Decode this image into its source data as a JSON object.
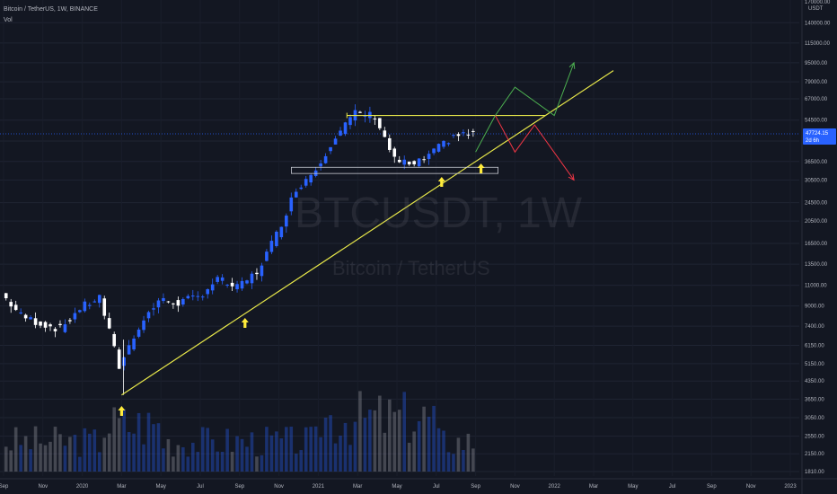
{
  "header": {
    "symbol_line": "Bitcoin / TetherUS, 1W, BINANCE",
    "indicator": "Vol"
  },
  "watermark": {
    "ticker": "BTCUSDT, 1W",
    "name": "Bitcoin / TetherUS"
  },
  "price_axis": {
    "currency": "USDT",
    "top_value": "170000.00",
    "labels": [
      "140000.00",
      "115000.00",
      "95000.00",
      "79000.00",
      "67000.00",
      "54500.00",
      "44500.00",
      "36500.00",
      "30500.00",
      "24500.00",
      "20500.00",
      "16500.00",
      "13500.00",
      "11000.00",
      "9000.00",
      "7400.00",
      "6150.00",
      "5150.00",
      "4350.00",
      "3650.00",
      "3050.00",
      "2550.00",
      "2150.00",
      "1810.00"
    ],
    "current_price": "47724.15",
    "countdown": "2d 6h"
  },
  "time_axis": [
    "Sep",
    "Nov",
    "2020",
    "Mar",
    "May",
    "Jul",
    "Sep",
    "Nov",
    "2021",
    "Mar",
    "May",
    "Jul",
    "Sep",
    "Nov",
    "2022",
    "Mar",
    "May",
    "Jul",
    "Sep",
    "Nov",
    "2023"
  ],
  "colors": {
    "background": "#131722",
    "up_candle": "#2962ff",
    "down_candle": "#ffffff",
    "trendline": "#e8e84a",
    "arrow_marker": "#ffeb3b",
    "bull_path": "#4caf50",
    "bear_path": "#f23645",
    "price_tag": "#2962ff"
  },
  "chart_data": {
    "type": "candlestick",
    "title": "Bitcoin / TetherUS, 1W, BINANCE",
    "y_scale": "log",
    "ylim": [
      1810,
      170000
    ],
    "xlim": [
      "2019-09",
      "2023-01"
    ],
    "current_price": 47724.15,
    "series": [
      {
        "name": "close_path",
        "points": [
          {
            "x": "2019-09",
            "y": 10200
          },
          {
            "x": "2019-10",
            "y": 8200
          },
          {
            "x": "2019-11",
            "y": 7600
          },
          {
            "x": "2019-12",
            "y": 7200
          },
          {
            "x": "2020-01",
            "y": 8800
          },
          {
            "x": "2020-02",
            "y": 9800
          },
          {
            "x": "2020-03",
            "y": 5000
          },
          {
            "x": "2020-04",
            "y": 7400
          },
          {
            "x": "2020-05",
            "y": 9500
          },
          {
            "x": "2020-06",
            "y": 9300
          },
          {
            "x": "2020-07",
            "y": 9800
          },
          {
            "x": "2020-08",
            "y": 11700
          },
          {
            "x": "2020-09",
            "y": 10700
          },
          {
            "x": "2020-10",
            "y": 12500
          },
          {
            "x": "2020-11",
            "y": 18000
          },
          {
            "x": "2020-12",
            "y": 28000
          },
          {
            "x": "2021-01",
            "y": 34000
          },
          {
            "x": "2021-02",
            "y": 47000
          },
          {
            "x": "2021-03",
            "y": 58000
          },
          {
            "x": "2021-04",
            "y": 57000
          },
          {
            "x": "2021-05",
            "y": 37000
          },
          {
            "x": "2021-06",
            "y": 35000
          },
          {
            "x": "2021-07",
            "y": 40000
          },
          {
            "x": "2021-08",
            "y": 47000
          },
          {
            "x": "2021-09",
            "y": 47724
          }
        ]
      }
    ],
    "annotations": [
      {
        "type": "trendline",
        "from": {
          "x": "2020-03",
          "y": 3800
        },
        "to": {
          "x": "2022-03",
          "y": 88000
        }
      },
      {
        "type": "resistance",
        "y": 57000,
        "from": "2021-02",
        "to": "2021-12"
      },
      {
        "type": "support_zone",
        "y": [
          32500,
          34500
        ],
        "from": "2021-01",
        "to": "2021-09"
      },
      {
        "type": "arrow_up",
        "x": "2020-03"
      },
      {
        "type": "arrow_up",
        "x": "2020-09"
      },
      {
        "type": "arrow_up",
        "x": "2021-07"
      },
      {
        "type": "arrow_up",
        "x": "2021-09"
      },
      {
        "type": "projection_bull",
        "points": [
          {
            "x": "2021-09",
            "y": 40000
          },
          {
            "x": "2021-10",
            "y": 57000
          },
          {
            "x": "2021-11",
            "y": 75000
          },
          {
            "x": "2022-01",
            "y": 57000
          },
          {
            "x": "2022-02",
            "y": 95000
          }
        ]
      },
      {
        "type": "projection_bear",
        "points": [
          {
            "x": "2021-10",
            "y": 57000
          },
          {
            "x": "2021-11",
            "y": 40000
          },
          {
            "x": "2021-12",
            "y": 52000
          },
          {
            "x": "2022-02",
            "y": 30500
          }
        ]
      }
    ]
  }
}
